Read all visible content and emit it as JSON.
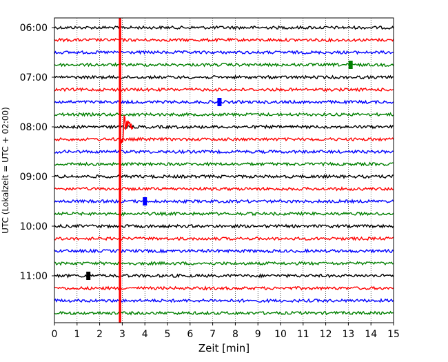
{
  "chart_data": {
    "type": "line",
    "title": "",
    "xlabel": "Zeit  [min]",
    "ylabel": "UTC (Lokalzeit = UTC + 02:00)",
    "xlim": [
      0,
      15
    ],
    "x_ticks": [
      "0",
      "1",
      "2",
      "3",
      "4",
      "5",
      "6",
      "7",
      "8",
      "9",
      "10",
      "11",
      "12",
      "13",
      "14",
      "15"
    ],
    "y_ticks": [
      "06:00",
      "07:00",
      "08:00",
      "09:00",
      "10:00",
      "11:00"
    ],
    "grid": "vertical dotted lines at each minute",
    "line_interval_minutes": 15,
    "trace_colors": [
      "#000000",
      "#ff0000",
      "#0000ff",
      "#008000"
    ],
    "traces": [
      {
        "time": "06:00",
        "color": "#000000"
      },
      {
        "time": "06:15",
        "color": "#ff0000"
      },
      {
        "time": "06:30",
        "color": "#0000ff"
      },
      {
        "time": "06:45",
        "color": "#008000"
      },
      {
        "time": "07:00",
        "color": "#000000"
      },
      {
        "time": "07:15",
        "color": "#ff0000"
      },
      {
        "time": "07:30",
        "color": "#0000ff"
      },
      {
        "time": "07:45",
        "color": "#008000"
      },
      {
        "time": "08:00",
        "color": "#000000"
      },
      {
        "time": "08:15",
        "color": "#ff0000"
      },
      {
        "time": "08:30",
        "color": "#0000ff"
      },
      {
        "time": "08:45",
        "color": "#008000"
      },
      {
        "time": "09:00",
        "color": "#000000"
      },
      {
        "time": "09:15",
        "color": "#ff0000"
      },
      {
        "time": "09:30",
        "color": "#0000ff"
      },
      {
        "time": "09:45",
        "color": "#008000"
      },
      {
        "time": "10:00",
        "color": "#000000"
      },
      {
        "time": "10:15",
        "color": "#ff0000"
      },
      {
        "time": "10:30",
        "color": "#0000ff"
      },
      {
        "time": "10:45",
        "color": "#008000"
      },
      {
        "time": "11:00",
        "color": "#000000"
      },
      {
        "time": "11:15",
        "color": "#ff0000"
      },
      {
        "time": "11:30",
        "color": "#0000ff"
      },
      {
        "time": "11:45",
        "color": "#008000"
      }
    ],
    "events": [
      {
        "type": "earthquake",
        "start_time": "08:15",
        "start_min": 2.9,
        "end_min": 3.5,
        "color": "#ff0000"
      },
      {
        "type": "spike",
        "time": "06:45",
        "min": 13.1,
        "color": "#008000"
      },
      {
        "type": "spike",
        "time": "07:30",
        "min": 7.3,
        "color": "#0000ff"
      },
      {
        "type": "spike",
        "time": "09:30",
        "min": 4.0,
        "color": "#0000ff"
      },
      {
        "type": "spike",
        "time": "11:00",
        "min": 1.5,
        "color": "#000000"
      }
    ]
  }
}
